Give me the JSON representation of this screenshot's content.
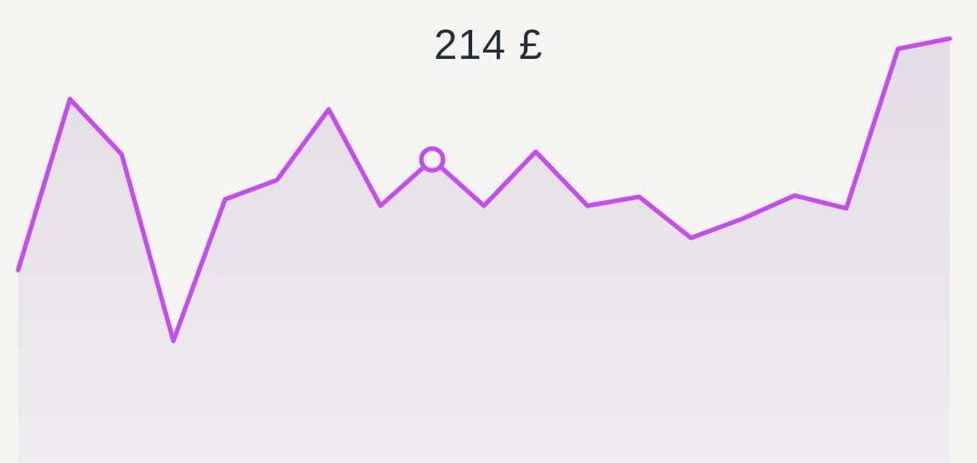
{
  "header": {
    "value": "214",
    "currency": "£"
  },
  "chart_data": {
    "type": "area",
    "title": "",
    "xlabel": "",
    "ylabel": "",
    "grid": false,
    "legend": "none",
    "x": [
      0,
      1,
      2,
      3,
      4,
      5,
      6,
      7,
      8,
      9,
      10,
      11,
      12,
      13,
      14,
      15,
      16,
      17,
      18
    ],
    "values": [
      150,
      283,
      240,
      95,
      205,
      220,
      275,
      200,
      236,
      200,
      242,
      200,
      207,
      175,
      190,
      208,
      198,
      322,
      330
    ],
    "ylim": [
      0,
      360
    ],
    "highlight_index": 8,
    "line_color": "#c64bf0",
    "fill_color_top": "#e2dde4",
    "fill_color_bottom": "#efedf0"
  }
}
